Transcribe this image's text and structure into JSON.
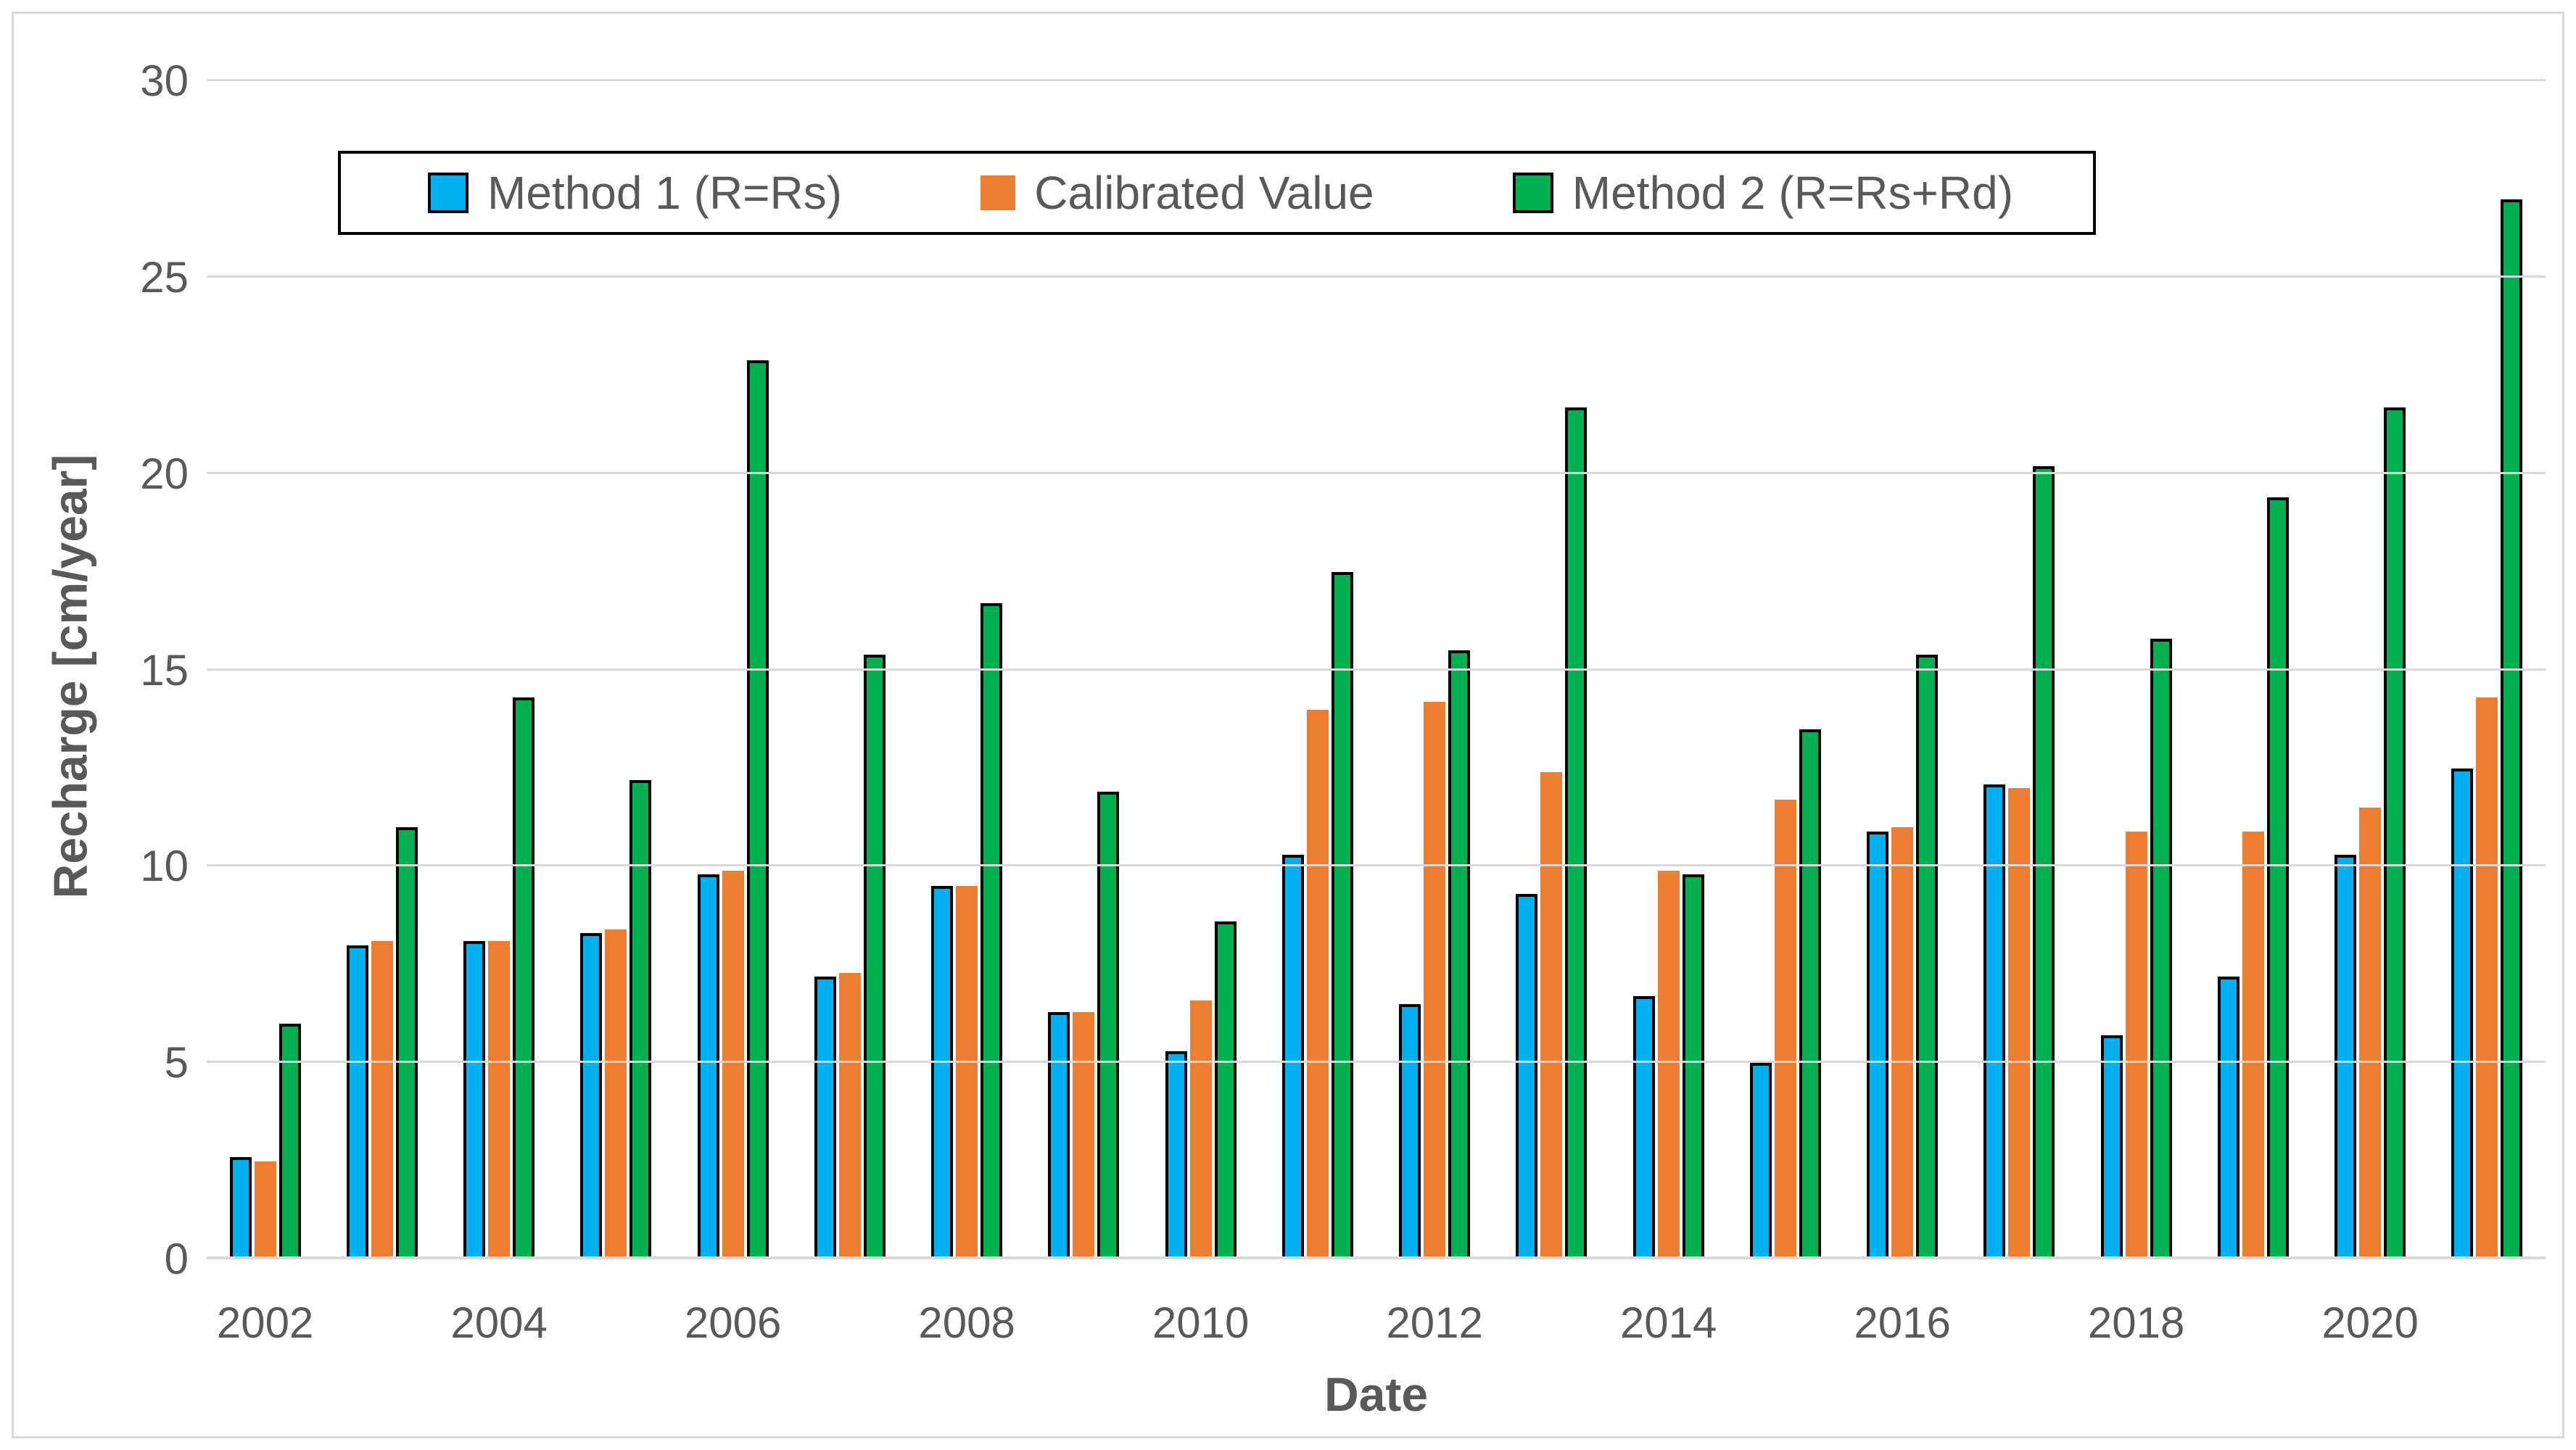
{
  "chart_data": {
    "type": "bar",
    "title": "",
    "xlabel": "Date",
    "ylabel": "Recharge [cm/year]",
    "y_max": 30,
    "y_ticks": [
      0,
      5,
      10,
      15,
      20,
      25,
      30
    ],
    "grid": "horizontal-only",
    "legend_position": "top-center-inside",
    "categories": [
      "2002",
      "2003",
      "2004",
      "2005",
      "2006",
      "2007",
      "2008",
      "2009",
      "2010",
      "2011",
      "2012",
      "2013",
      "2014",
      "2015",
      "2016",
      "2017",
      "2018",
      "2019",
      "2020",
      "2021"
    ],
    "x_tick_labels_shown": [
      "2002",
      "2004",
      "2006",
      "2008",
      "2010",
      "2012",
      "2014",
      "2016",
      "2018",
      "2020"
    ],
    "series": [
      {
        "name": "Method 1 (R=Rs)",
        "color": "#00B0F0",
        "outlined": true,
        "values": [
          2.6,
          8.0,
          8.1,
          8.3,
          9.8,
          7.2,
          9.5,
          6.3,
          5.3,
          10.3,
          6.5,
          9.3,
          6.7,
          5.0,
          10.9,
          12.1,
          5.7,
          7.2,
          10.3,
          12.5
        ]
      },
      {
        "name": "Calibrated Value",
        "color": "#ED7D31",
        "outlined": false,
        "values": [
          2.5,
          8.1,
          8.1,
          8.4,
          9.9,
          7.3,
          9.5,
          6.3,
          6.6,
          14.0,
          14.2,
          12.4,
          9.9,
          11.7,
          11.0,
          12.0,
          10.9,
          10.9,
          11.5,
          14.3
        ]
      },
      {
        "name": "Method 2 (R=Rs+Rd)",
        "color": "#00B050",
        "outlined": true,
        "values": [
          6.0,
          11.0,
          14.3,
          12.2,
          22.9,
          15.4,
          16.7,
          11.9,
          8.6,
          17.5,
          15.5,
          21.7,
          9.8,
          13.5,
          15.4,
          20.2,
          15.8,
          19.4,
          21.7,
          27.0
        ]
      }
    ],
    "colors": {
      "gridline": "#d9d9d9",
      "axis_text": "#595959",
      "bar_outline": "#000000",
      "legend_border": "#000000",
      "chart_border": "#d9d9d9",
      "background": "#ffffff"
    }
  }
}
